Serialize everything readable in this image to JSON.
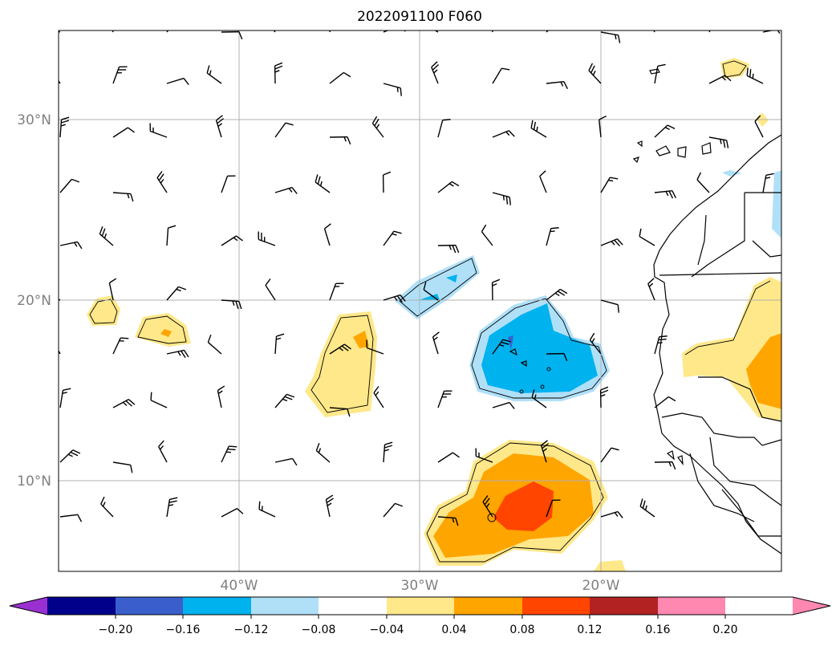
{
  "title": "2022091100 F060",
  "map": {
    "lon_range": [
      -50,
      -10
    ],
    "lat_range": [
      5,
      35
    ],
    "lon_ticks": [
      {
        "value": -40,
        "label": "40°W"
      },
      {
        "value": -30,
        "label": "30°W"
      },
      {
        "value": -20,
        "label": "20°W"
      }
    ],
    "lat_ticks": [
      {
        "value": 30,
        "label": "30°N"
      },
      {
        "value": 20,
        "label": "20°N"
      },
      {
        "value": 10,
        "label": "10°N"
      }
    ],
    "gridlines": true,
    "overlay": "wind-barbs"
  },
  "colorbar": {
    "levels": [
      "−0.20",
      "−0.16",
      "−0.12",
      "−0.08",
      "−0.04",
      "0.04",
      "0.08",
      "0.12",
      "0.16",
      "0.20"
    ],
    "colors": [
      "#9b30d0",
      "#00008b",
      "#3a5fcd",
      "#00b2ee",
      "#b0e0f8",
      "#ffffff",
      "#ffe88a",
      "#ffa500",
      "#ff4500",
      "#b22222",
      "#ff88b0"
    ]
  }
}
